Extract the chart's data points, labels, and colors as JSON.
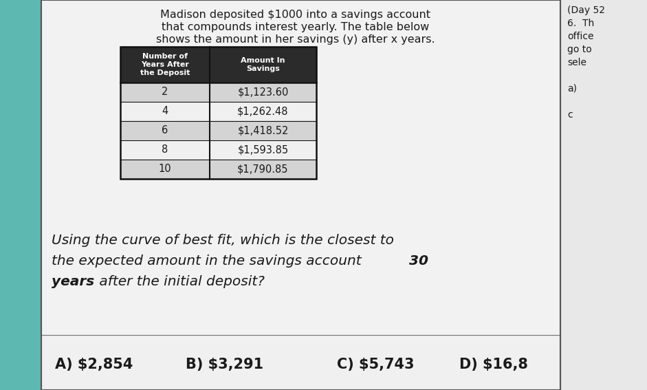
{
  "title_lines": [
    "Madison deposited $1000 into a savings account",
    "that compounds interest yearly. The table below",
    "shows the amount in her savings (y) after x years."
  ],
  "right_text_lines": [
    "(Day 52",
    "6.  Th",
    "office",
    "go to",
    "sele",
    "",
    "a)",
    "",
    "c"
  ],
  "table_header": [
    "Number of\nYears After\nthe Deposit",
    "Amount In\nSavings"
  ],
  "table_rows": [
    [
      "2",
      "$1,123.60"
    ],
    [
      "4",
      "$1,262.48"
    ],
    [
      "6",
      "$1,418.52"
    ],
    [
      "8",
      "$1,593.85"
    ],
    [
      "10",
      "$1,790.85"
    ]
  ],
  "answer_choices": [
    {
      "label": "A)",
      "value": "$2,854"
    },
    {
      "label": "B)",
      "value": "$3,291"
    },
    {
      "label": "C)",
      "value": "$5,743"
    },
    {
      "label": "D)",
      "value": "$16,8"
    }
  ],
  "bg_teal": "#5cb8b0",
  "bg_page": "#eeeeee",
  "bg_white": "#f8f8f8",
  "bg_right": "#e0e0e0",
  "table_header_bg": "#2b2b2b",
  "table_header_text": "#ffffff",
  "table_row_bg_odd": "#d4d4d4",
  "table_row_bg_even": "#f0f0f0",
  "text_color": "#1a1a1a",
  "border_color": "#333333",
  "right_border_color": "#555555"
}
